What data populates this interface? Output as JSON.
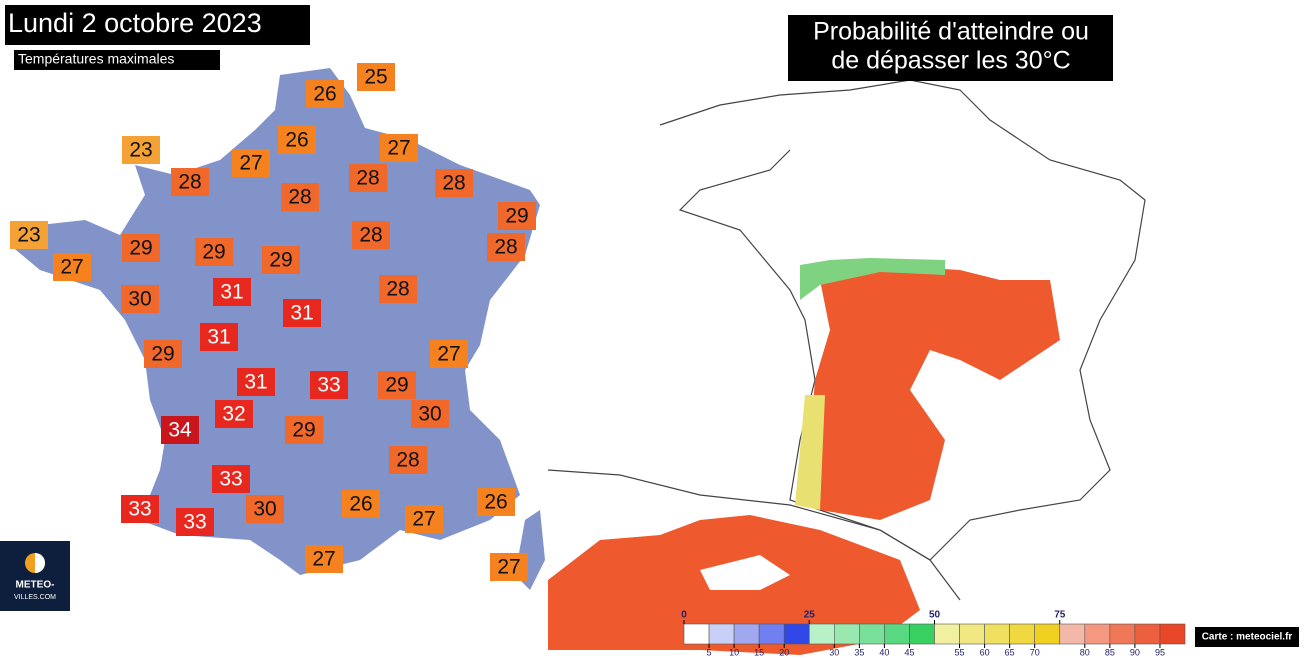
{
  "left_map": {
    "title": "Lundi 2 octobre 2023",
    "subtitle": "Températures maximales",
    "temperatures": [
      25,
      26,
      23,
      26,
      27,
      27,
      28,
      28,
      28,
      28,
      29,
      23,
      28,
      28,
      29,
      29,
      29,
      27,
      30,
      31,
      28,
      31,
      31,
      29,
      27,
      31,
      33,
      29,
      32,
      30,
      34,
      29,
      28,
      33,
      33,
      30,
      26,
      26,
      27,
      33,
      27,
      27
    ],
    "logo": {
      "line1": "METEO-",
      "line2": "VILLES.COM"
    }
  },
  "right_map": {
    "title_lines": [
      "Probabilité d'atteindre ou",
      "de dépasser les 30°C"
    ],
    "legend": {
      "major_ticks": [
        0,
        25,
        50,
        75
      ],
      "minor_ticks": [
        5,
        10,
        15,
        20,
        30,
        35,
        40,
        45,
        55,
        60,
        65,
        70,
        80,
        85,
        90,
        95
      ]
    },
    "credit": "Carte : meteociel.fr"
  }
}
